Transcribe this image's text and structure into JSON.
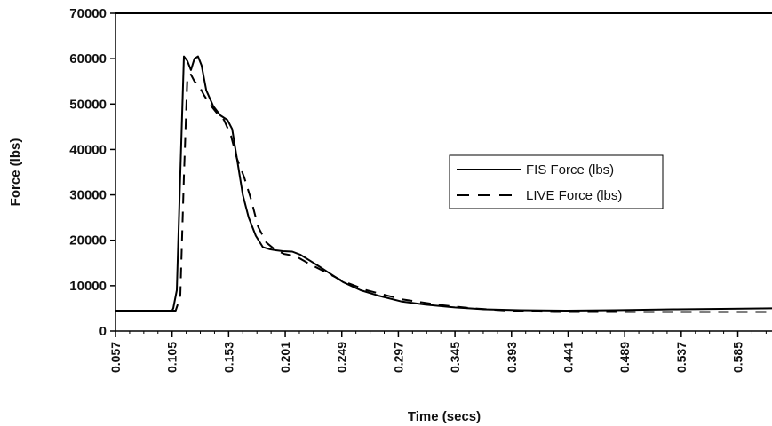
{
  "chart_data": {
    "type": "line",
    "title": "",
    "xlabel": "Time (secs)",
    "ylabel": "Force (lbs)",
    "xlim": [
      0.057,
      0.614
    ],
    "ylim": [
      0,
      70000
    ],
    "y_ticks": [
      "70000",
      "60000",
      "50000",
      "40000",
      "30000",
      "20000",
      "10000",
      "0"
    ],
    "x_ticks": [
      "0.057",
      "0.105",
      "0.153",
      "0.201",
      "0.249",
      "0.297",
      "0.345",
      "0.393",
      "0.441",
      "0.489",
      "0.537",
      "0.585"
    ],
    "grid": false,
    "legend_position": "right",
    "series": [
      {
        "name": "FIS Force (lbs)",
        "style": "solid",
        "color": "#000000",
        "x": [
          0.057,
          0.105,
          0.106,
          0.109,
          0.112,
          0.115,
          0.118,
          0.121,
          0.124,
          0.127,
          0.13,
          0.134,
          0.14,
          0.146,
          0.152,
          0.156,
          0.16,
          0.165,
          0.17,
          0.176,
          0.182,
          0.188,
          0.193,
          0.199,
          0.207,
          0.214,
          0.222,
          0.23,
          0.24,
          0.25,
          0.265,
          0.28,
          0.3,
          0.32,
          0.345,
          0.37,
          0.4,
          0.44,
          0.48,
          0.53,
          0.58,
          0.614
        ],
        "y": [
          4500,
          4500,
          5000,
          9000,
          35000,
          60500,
          59500,
          57500,
          60000,
          60500,
          58500,
          53000,
          49500,
          47500,
          46500,
          44500,
          38000,
          30000,
          25000,
          21000,
          18500,
          18000,
          17800,
          17600,
          17500,
          16800,
          15500,
          14200,
          12500,
          10800,
          9000,
          7800,
          6500,
          5800,
          5200,
          4800,
          4600,
          4500,
          4600,
          4800,
          4900,
          5000
        ]
      },
      {
        "name": "LIVE Force (lbs)",
        "style": "dashed",
        "color": "#000000",
        "x": [
          0.057,
          0.108,
          0.11,
          0.112,
          0.115,
          0.118,
          0.121,
          0.124,
          0.128,
          0.132,
          0.137,
          0.143,
          0.149,
          0.155,
          0.16,
          0.166,
          0.172,
          0.178,
          0.185,
          0.192,
          0.2,
          0.21,
          0.22,
          0.235,
          0.25,
          0.27,
          0.3,
          0.33,
          0.36,
          0.39,
          0.43,
          0.47,
          0.52,
          0.57,
          0.614
        ],
        "y": [
          4500,
          4500,
          6000,
          8000,
          34000,
          56000,
          56500,
          55000,
          54000,
          52000,
          50000,
          48000,
          46500,
          43000,
          38000,
          34000,
          29000,
          23000,
          19500,
          18000,
          17000,
          16500,
          15000,
          13000,
          11000,
          9000,
          7000,
          5800,
          5000,
          4500,
          4200,
          4200,
          4200,
          4200,
          4200
        ]
      }
    ]
  }
}
